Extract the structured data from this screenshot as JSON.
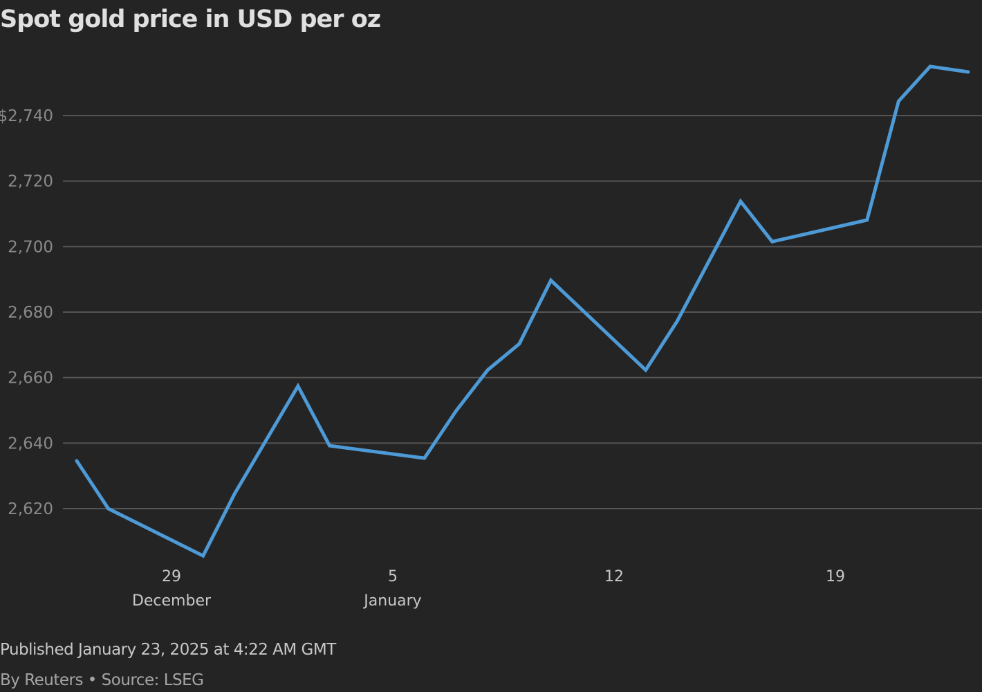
{
  "header": {
    "title": "Spot gold price in USD per oz"
  },
  "footer": {
    "published": "Published January 23, 2025 at 4:22 AM GMT",
    "credit": "By Reuters • Source: LSEG"
  },
  "colors": {
    "background": "#242424",
    "line": "#4d9ad6",
    "grid": "#555555"
  },
  "chart_data": {
    "type": "line",
    "title": "Spot gold price in USD per oz",
    "xlabel": "",
    "ylabel": "USD per oz",
    "ylim": [
      2600,
      2760
    ],
    "grid": true,
    "legend": "none",
    "y_ticks": [
      {
        "value": 2740,
        "label": "$2,740"
      },
      {
        "value": 2720,
        "label": "2,720"
      },
      {
        "value": 2700,
        "label": "2,700"
      },
      {
        "value": 2680,
        "label": "2,680"
      },
      {
        "value": 2660,
        "label": "2,660"
      },
      {
        "value": 2640,
        "label": "2,640"
      },
      {
        "value": 2620,
        "label": "2,620"
      }
    ],
    "x_ticks": [
      {
        "day": 29,
        "label": "29",
        "sublabel": "December"
      },
      {
        "day": 36,
        "label": "5",
        "sublabel": "January"
      },
      {
        "day": 43,
        "label": "12",
        "sublabel": ""
      },
      {
        "day": 50,
        "label": "19",
        "sublabel": ""
      }
    ],
    "series": [
      {
        "name": "Spot gold",
        "x": [
          "Dec 26",
          "Dec 27",
          "Dec 30",
          "Dec 31",
          "Jan 2",
          "Jan 3",
          "Jan 6",
          "Jan 7",
          "Jan 8",
          "Jan 9",
          "Jan 10",
          "Jan 13",
          "Jan 14",
          "Jan 16",
          "Jan 17",
          "Jan 20",
          "Jan 21",
          "Jan 22",
          "Jan 23"
        ],
        "day": [
          26,
          27,
          30,
          31,
          33,
          34,
          37,
          38,
          39,
          40,
          41,
          44,
          45,
          47,
          48,
          51,
          52,
          53,
          54.2
        ],
        "values": [
          2634.6,
          2620.0,
          2605.6,
          2624.6,
          2657.4,
          2639.2,
          2635.4,
          2649.8,
          2662.3,
          2670.3,
          2689.7,
          2662.3,
          2677.3,
          2713.8,
          2701.5,
          2708.1,
          2744.4,
          2755.0,
          2753.3
        ]
      }
    ]
  }
}
